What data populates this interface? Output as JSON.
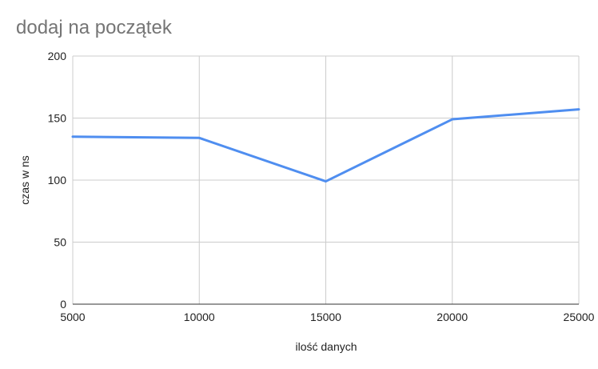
{
  "chart_data": {
    "type": "line",
    "title": "dodaj na początek",
    "xlabel": "ilość danych",
    "ylabel": "czas w ns",
    "x": [
      5000,
      10000,
      15000,
      20000,
      25000
    ],
    "x_tick_labels": [
      "5000",
      "10000",
      "15000",
      "20000",
      "25000"
    ],
    "y_ticks": [
      0,
      50,
      100,
      150,
      200
    ],
    "y_tick_labels": [
      "0",
      "50",
      "100",
      "150",
      "200"
    ],
    "xlim": [
      5000,
      25000
    ],
    "ylim": [
      0,
      200
    ],
    "grid": true,
    "legend": "none",
    "series": [
      {
        "values": [
          135,
          134,
          99,
          149,
          157
        ],
        "color": "#4f8ef0"
      }
    ]
  }
}
